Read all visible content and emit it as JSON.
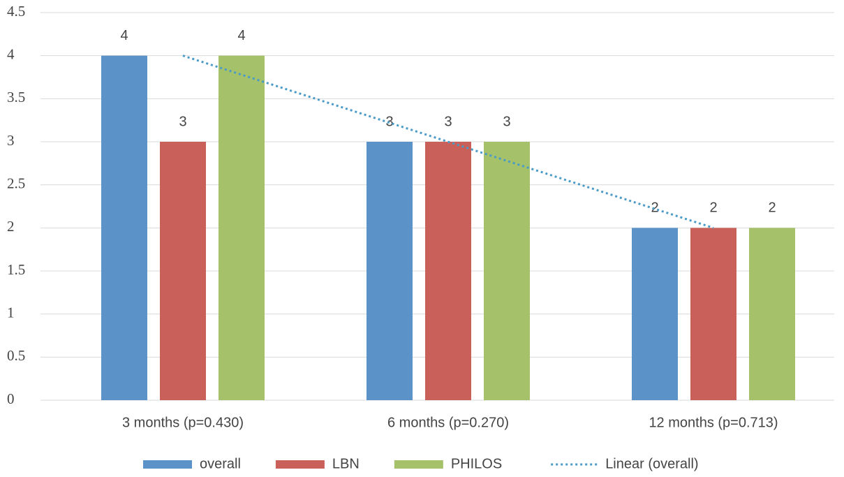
{
  "chart_data": {
    "type": "bar",
    "categories": [
      "3 months (p=0.430)",
      "6 months (p=0.270)",
      "12 months (p=0.713)"
    ],
    "series": [
      {
        "name": "overall",
        "color": "#5b93c8",
        "values": [
          4,
          3,
          2
        ]
      },
      {
        "name": "LBN",
        "color": "#c9605a",
        "values": [
          3,
          3,
          2
        ]
      },
      {
        "name": "PHILOS",
        "color": "#a5c16a",
        "values": [
          4,
          3,
          2
        ]
      }
    ],
    "trendline": {
      "name": "Linear (overall)",
      "color": "#4a9bc7",
      "values": [
        4,
        3,
        2
      ]
    },
    "ylim": [
      0,
      4.5
    ],
    "yticks": [
      0,
      0.5,
      1,
      1.5,
      2,
      2.5,
      3,
      3.5,
      4,
      4.5
    ],
    "grid": true,
    "legend": "bottom"
  }
}
